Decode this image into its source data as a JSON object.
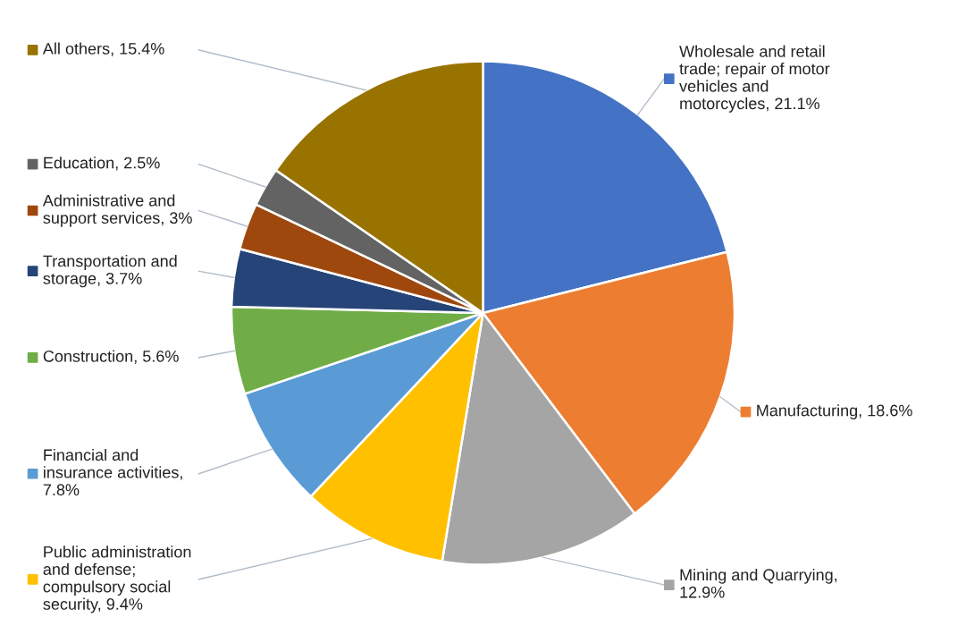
{
  "chart_data": {
    "type": "pie",
    "categories": [
      "Wholesale and retail trade; repair of motor vehicles and motorcycles, 21.1%",
      "Manufacturing, 18.6%",
      "Mining and Quarrying, 12.9%",
      "Public administration and defense; compulsory social security, 9.4%",
      "Financial and insurance activities, 7.8%",
      "Construction, 5.6%",
      "Transportation and storage, 3.7%",
      "Administrative and support services, 3%",
      "Education, 2.5%",
      "All others, 15.4%"
    ],
    "values": [
      21.1,
      18.6,
      12.9,
      9.4,
      7.8,
      5.6,
      3.7,
      3,
      2.5,
      15.4
    ],
    "legend": "left",
    "colors": [
      "#4472c4",
      "#ed7d31",
      "#a5a5a5",
      "#ffc000",
      "#5b9bd5",
      "#70ad47",
      "#264478",
      "#9e480e",
      "#636363",
      "#997300"
    ]
  }
}
